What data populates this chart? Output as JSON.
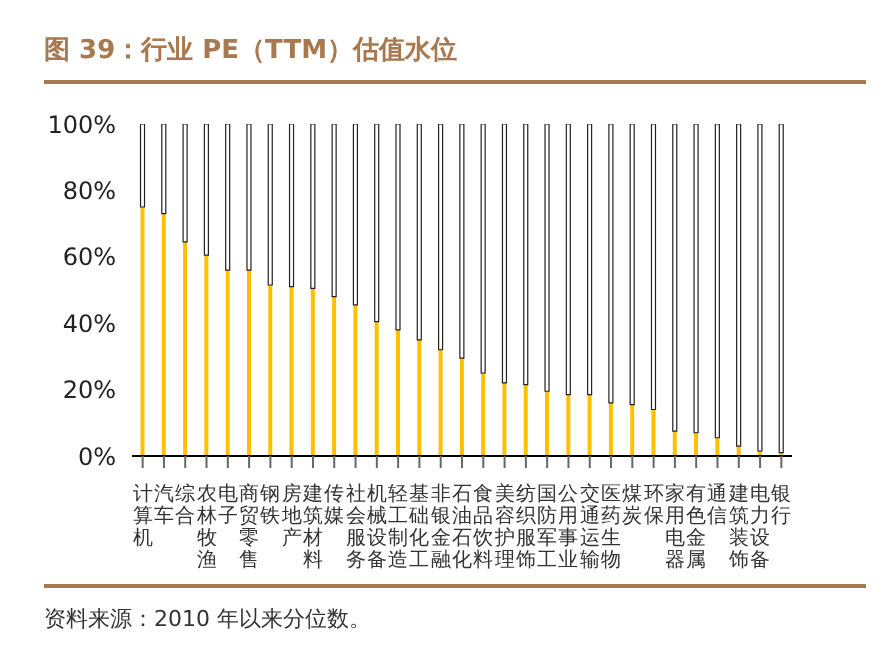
{
  "chart_data": {
    "type": "bar",
    "title": "图 39：行业 PE（TTM）估值水位",
    "stacked": true,
    "categories": [
      "计算机",
      "汽车",
      "综合",
      "农林牧渔",
      "电子",
      "商贸零售",
      "钢铁",
      "房地产",
      "建筑材料",
      "传媒",
      "社会服务",
      "机械设备",
      "轻工制造",
      "基础化工",
      "非银金融",
      "石油石化",
      "食品饮料",
      "美容护理",
      "纺织服饰",
      "国防军工",
      "公用事业",
      "交通运输",
      "医药生物",
      "煤炭",
      "环保",
      "家用电器",
      "有色金属",
      "通信",
      "建筑装饰",
      "电力设备",
      "银行"
    ],
    "series": [
      {
        "color": "#ffc000",
        "values": [
          75,
          73,
          64.5,
          60.5,
          56,
          56,
          51.5,
          51,
          50.5,
          48,
          45.5,
          40.5,
          38,
          35,
          32,
          29.5,
          25,
          22,
          21.5,
          19.5,
          18.5,
          18.5,
          16,
          15.5,
          14,
          7.5,
          7,
          5.5,
          3,
          1.5,
          1
        ]
      },
      {
        "color": "#ffffff",
        "values": [
          25,
          27,
          35.5,
          39.5,
          44,
          44,
          48.5,
          49,
          49.5,
          52,
          54.5,
          59.5,
          62,
          65,
          68,
          70.5,
          75,
          78,
          78.5,
          80.5,
          81.5,
          81.5,
          84,
          84.5,
          86,
          92.5,
          93,
          94.5,
          97,
          98.5,
          99
        ]
      }
    ],
    "ylim": [
      0,
      100
    ],
    "yticks": [
      {
        "value": 0,
        "label": "0%"
      },
      {
        "value": 20,
        "label": "20%"
      },
      {
        "value": 40,
        "label": "40%"
      },
      {
        "value": 60,
        "label": "60%"
      },
      {
        "value": 80,
        "label": "80%"
      },
      {
        "value": 100,
        "label": "100%"
      }
    ],
    "grid": false,
    "legend": false,
    "annotations": [
      "资料来源：2010 年以来分位数。"
    ]
  }
}
